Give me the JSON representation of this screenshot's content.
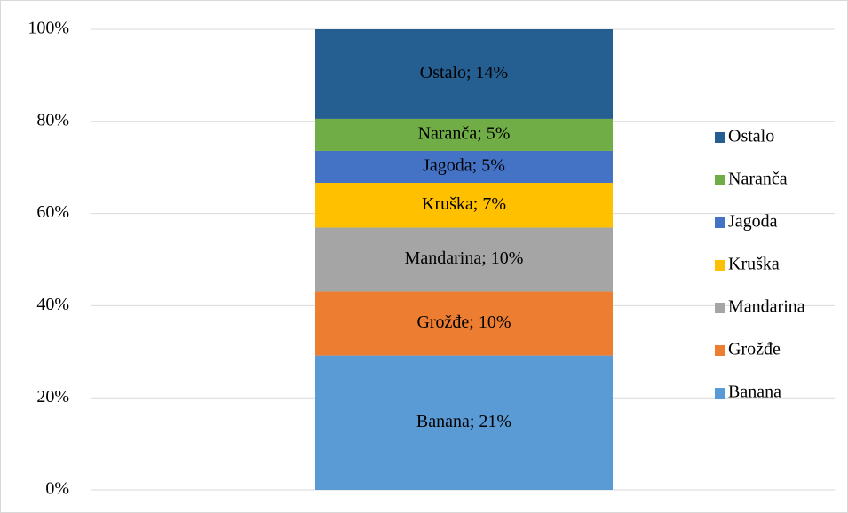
{
  "chart_data": {
    "type": "bar",
    "stacking": "percent",
    "categories": [
      null
    ],
    "series": [
      {
        "name": "Banana",
        "color": "#5b9bd5",
        "values": [
          21
        ],
        "value_labels": [
          "Banana; 21%"
        ]
      },
      {
        "name": "Grožđe",
        "color": "#ed7d31",
        "values": [
          10
        ],
        "value_labels": [
          "Grožđe; 10%"
        ]
      },
      {
        "name": "Mandarina",
        "color": "#a5a5a5",
        "values": [
          10
        ],
        "value_labels": [
          "Mandarina; 10%"
        ]
      },
      {
        "name": "Kruška",
        "color": "#ffc000",
        "values": [
          7
        ],
        "value_labels": [
          "Kruška; 7%"
        ]
      },
      {
        "name": "Jagoda",
        "color": "#4472c4",
        "values": [
          5
        ],
        "value_labels": [
          "Jagoda; 5%"
        ]
      },
      {
        "name": "Naranča",
        "color": "#70ad47",
        "values": [
          5
        ],
        "value_labels": [
          "Naranča; 5%"
        ]
      },
      {
        "name": "Ostalo",
        "color": "#255e91",
        "values": [
          14
        ],
        "value_labels": [
          "Ostalo; 14%"
        ]
      }
    ],
    "ylim": [
      0,
      100
    ],
    "yticks": [
      {
        "value": 0,
        "label": "0%"
      },
      {
        "value": 20,
        "label": "20%"
      },
      {
        "value": 40,
        "label": "40%"
      },
      {
        "value": 60,
        "label": "60%"
      },
      {
        "value": 80,
        "label": "80%"
      },
      {
        "value": 100,
        "label": "100%"
      }
    ],
    "grid": true,
    "legend": "right"
  }
}
